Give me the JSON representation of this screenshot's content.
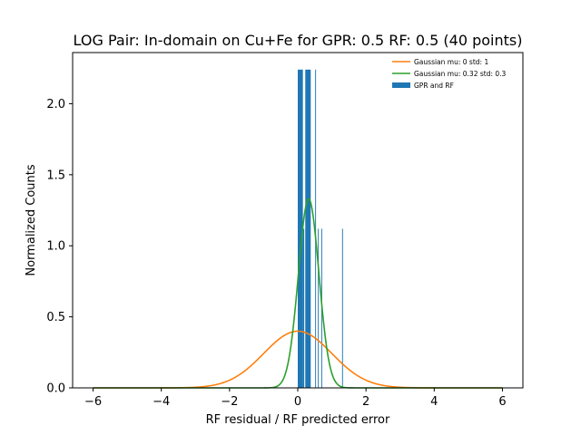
{
  "chart_data": {
    "type": "bar",
    "title": "LOG Pair: In-domain on Cu+Fe for GPR: 0.5 RF: 0.5 (40 points)",
    "xlabel": "RF residual / RF predicted error",
    "ylabel": "Normalized Counts",
    "xlim": [
      -6.6,
      6.6
    ],
    "ylim": [
      0,
      2.36
    ],
    "xticks": [
      -6,
      -4,
      -2,
      0,
      2,
      4,
      6
    ],
    "xtick_labels": [
      "−6",
      "−4",
      "−2",
      "0",
      "2",
      "4",
      "6"
    ],
    "yticks": [
      0.0,
      0.5,
      1.0,
      1.5,
      2.0
    ],
    "ytick_labels": [
      "0.0",
      "0.5",
      "1.0",
      "1.5",
      "2.0"
    ],
    "legend_position": "top-right",
    "grid": false,
    "series": [
      {
        "name": "Gaussian mu: 0 std: 1",
        "kind": "line",
        "color": "#ff7f0e",
        "mu": 0,
        "std": 1,
        "x_range": [
          -6,
          6
        ]
      },
      {
        "name": "Gaussian mu: 0.32 std: 0.3",
        "kind": "line",
        "color": "#2ca02c",
        "mu": 0.32,
        "std": 0.3,
        "x_range": [
          -6,
          6
        ]
      },
      {
        "name": "GPR and RF",
        "kind": "bar",
        "color": "#1f77b4",
        "bars": [
          {
            "x0": 0.0,
            "x1": 0.15,
            "value": 2.24
          },
          {
            "x0": 0.15,
            "x1": 0.19,
            "value": 1.12
          },
          {
            "x0": 0.22,
            "x1": 0.38,
            "value": 2.24
          },
          {
            "x0": 0.51,
            "x1": 0.535,
            "value": 2.24
          },
          {
            "x0": 0.59,
            "x1": 0.615,
            "value": 1.12
          },
          {
            "x0": 0.69,
            "x1": 0.715,
            "value": 1.12
          },
          {
            "x0": 1.3,
            "x1": 1.325,
            "value": 1.12
          }
        ]
      }
    ]
  }
}
